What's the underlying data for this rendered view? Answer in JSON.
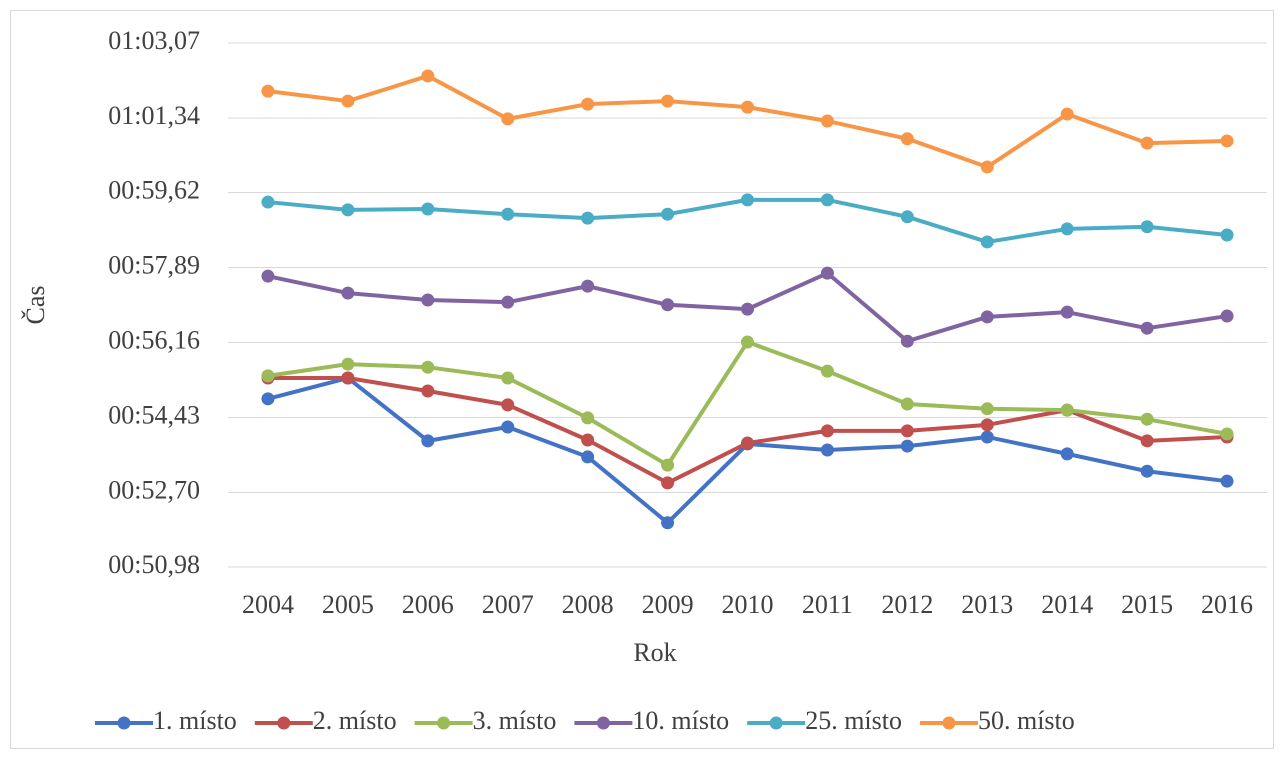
{
  "chart_data": {
    "type": "line",
    "xlabel": "Rok",
    "ylabel": "Čas",
    "categories": [
      "2004",
      "2005",
      "2006",
      "2007",
      "2008",
      "2009",
      "2010",
      "2011",
      "2012",
      "2013",
      "2014",
      "2015",
      "2016"
    ],
    "series": [
      {
        "name": "1. místo",
        "color": "#4472c4",
        "values": [
          54.86,
          55.34,
          53.89,
          54.21,
          53.52,
          52.0,
          53.82,
          53.68,
          53.77,
          53.98,
          53.59,
          53.19,
          52.96
        ]
      },
      {
        "name": "2. místo",
        "color": "#c0504d",
        "values": [
          55.34,
          55.34,
          55.04,
          54.72,
          53.91,
          52.92,
          53.84,
          54.12,
          54.12,
          54.26,
          54.6,
          53.89,
          53.98
        ]
      },
      {
        "name": "3. místo",
        "color": "#9bbb59",
        "values": [
          55.39,
          55.66,
          55.59,
          55.34,
          54.42,
          53.33,
          56.17,
          55.5,
          54.74,
          54.63,
          54.6,
          54.39,
          54.05
        ]
      },
      {
        "name": "10. místo",
        "color": "#8064a2",
        "values": [
          57.69,
          57.3,
          57.14,
          57.09,
          57.46,
          57.03,
          56.93,
          57.76,
          56.19,
          56.75,
          56.86,
          56.49,
          56.77
        ]
      },
      {
        "name": "25. místo",
        "color": "#4bacc6",
        "values": [
          59.4,
          59.22,
          59.24,
          59.12,
          59.03,
          59.12,
          59.45,
          59.45,
          59.06,
          58.48,
          58.78,
          58.83,
          58.64
        ]
      },
      {
        "name": "50. místo",
        "color": "#f79646",
        "values": [
          61.96,
          61.73,
          62.31,
          61.32,
          61.66,
          61.73,
          61.59,
          61.27,
          60.86,
          60.21,
          61.43,
          60.76,
          60.81
        ]
      }
    ],
    "ylim": [
      50.98,
      63.07
    ],
    "yticks": [
      {
        "value": 50.98,
        "label": "00:50,98"
      },
      {
        "value": 52.7,
        "label": "00:52,70"
      },
      {
        "value": 54.43,
        "label": "00:54,43"
      },
      {
        "value": 56.16,
        "label": "00:56,16"
      },
      {
        "value": 57.89,
        "label": "00:57,89"
      },
      {
        "value": 59.62,
        "label": "00:59,62"
      },
      {
        "value": 61.34,
        "label": "01:01,34"
      },
      {
        "value": 63.07,
        "label": "01:03,07"
      }
    ],
    "grid": true,
    "legend": "bottom"
  }
}
